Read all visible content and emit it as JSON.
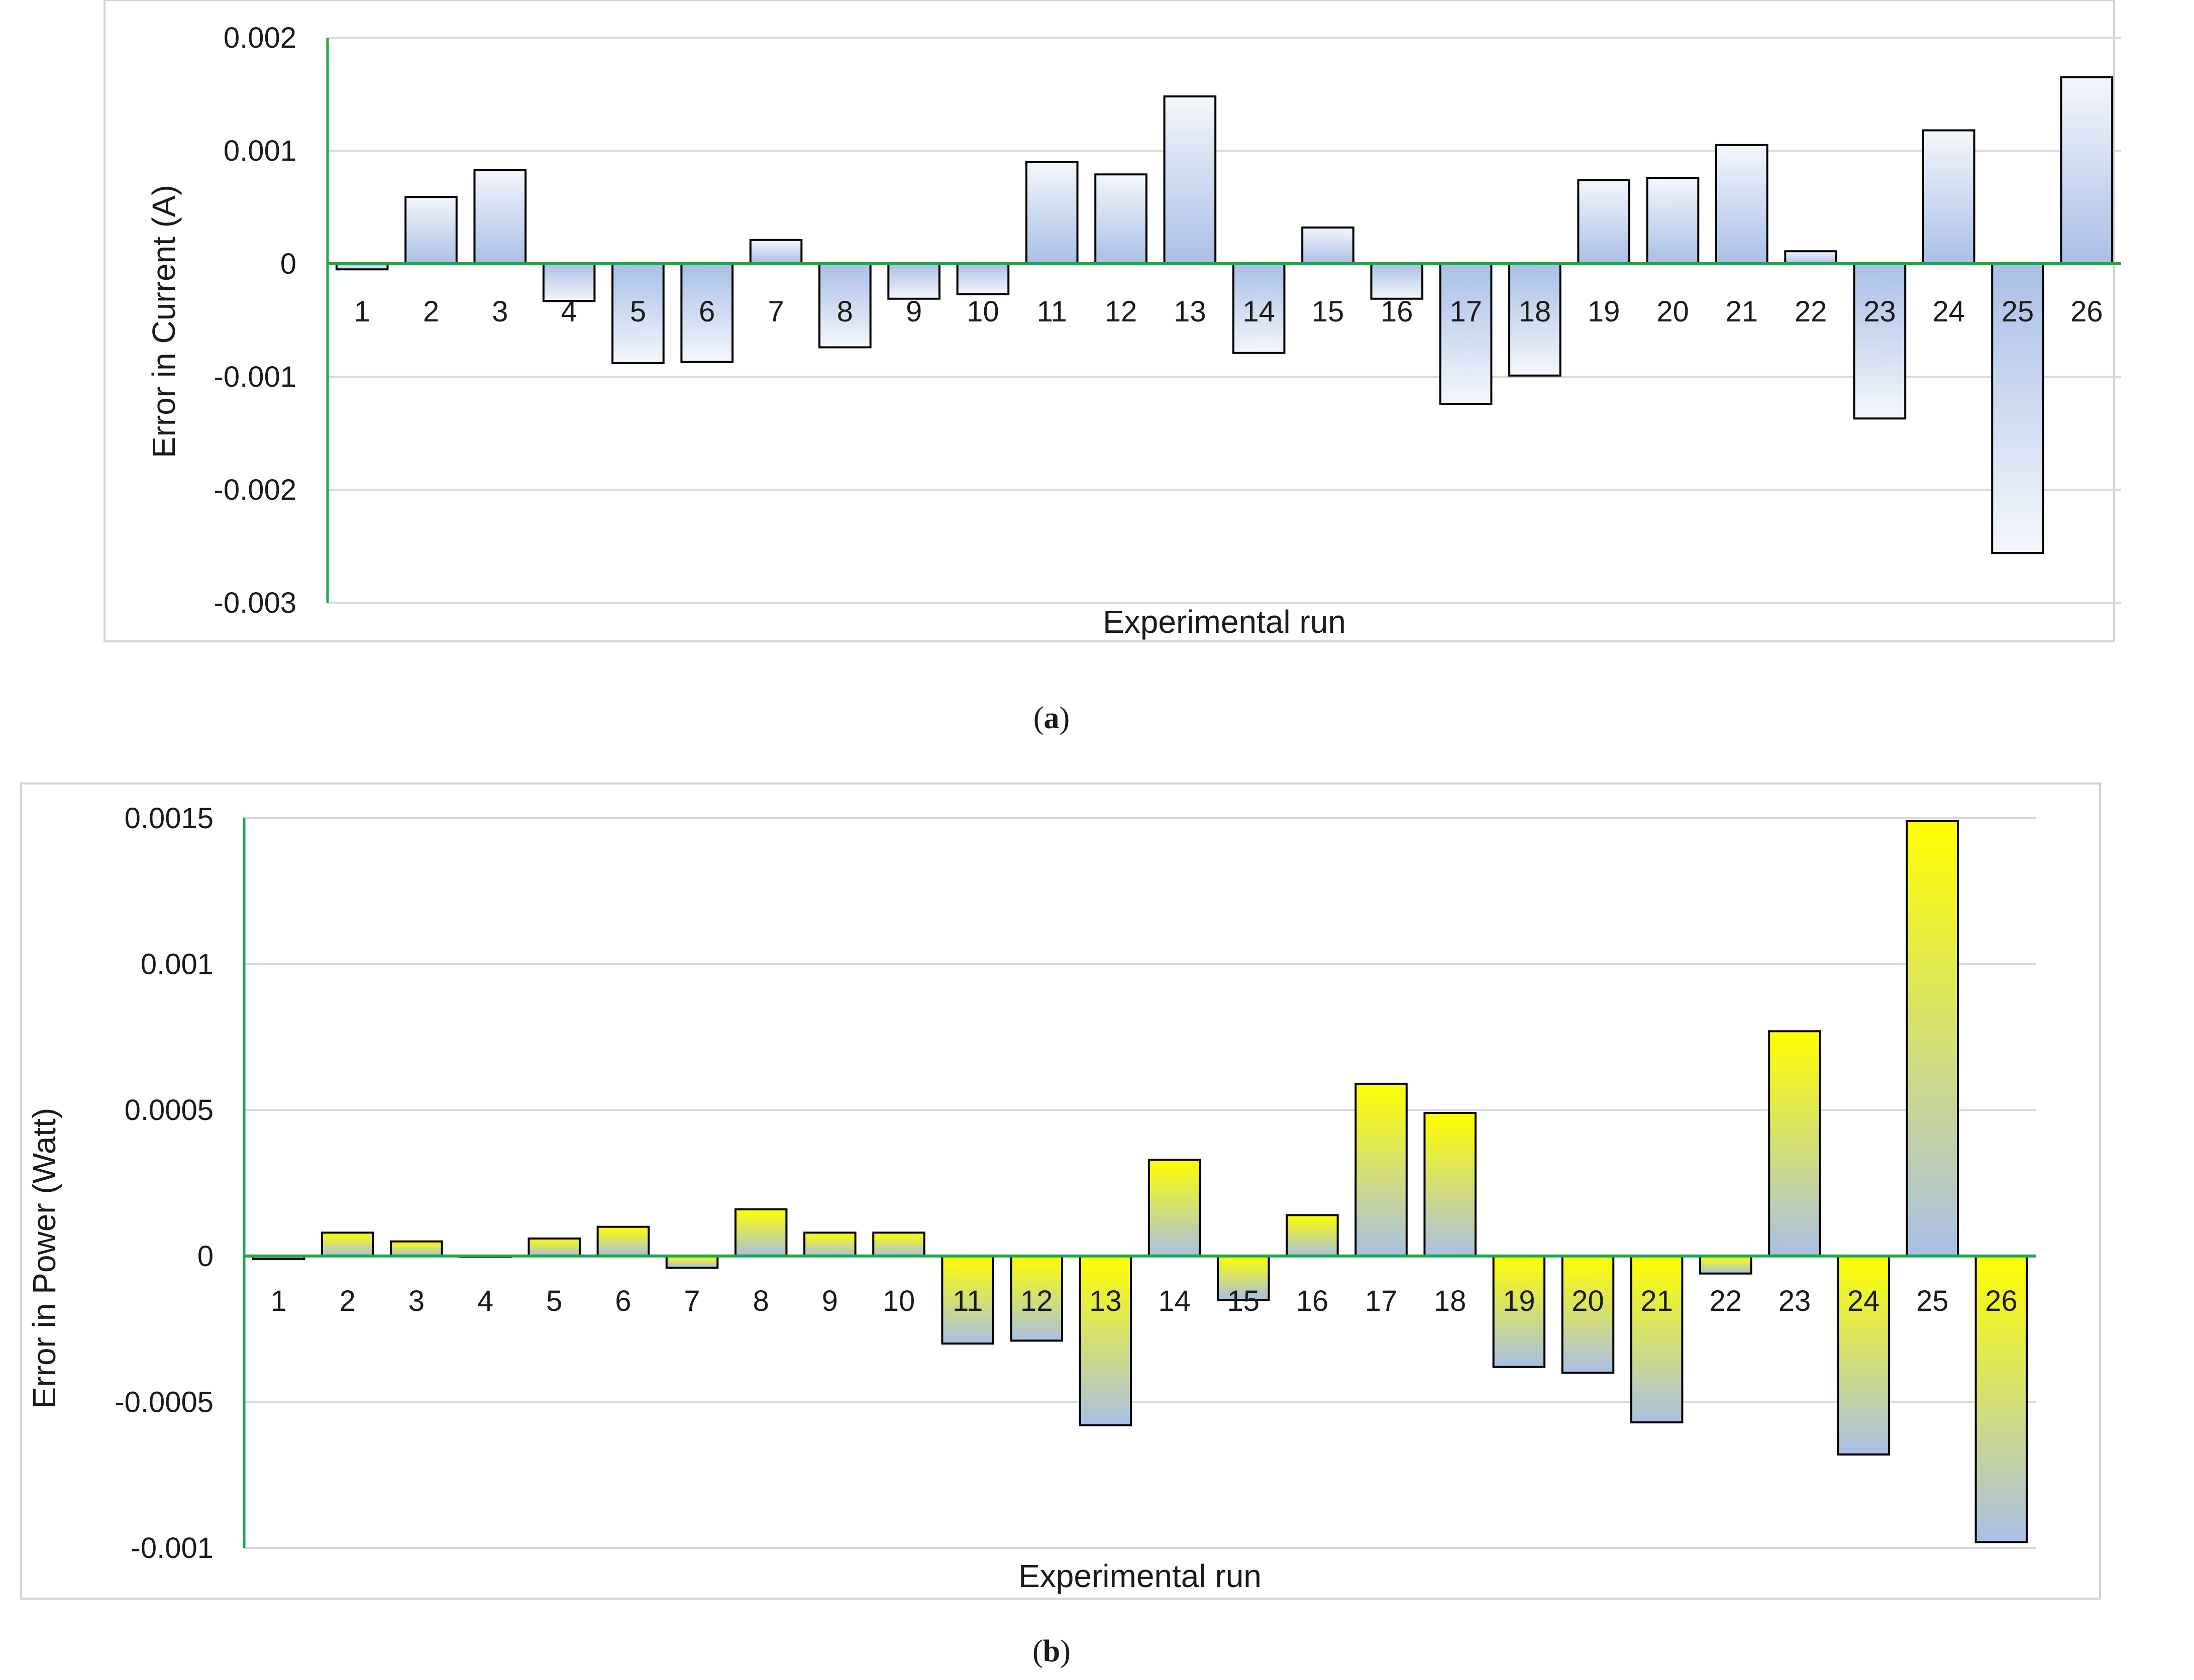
{
  "colors": {
    "axis_zero_line": "#1fa64a",
    "grid": "#d9d9d9",
    "frame": "#d4d4d4",
    "bar_outline": "#000000",
    "blue_fill": "#a9bfe6",
    "white_fill": "#f4f7fc",
    "yellow_fill": "#ffff00"
  },
  "panels": [
    {
      "caption_letter": "a",
      "caption_open": "(",
      "caption_close": ")",
      "chart_data": {
        "type": "bar",
        "xlabel": "Experimental run",
        "ylabel": "Error in Current (A)",
        "ylim": [
          -0.003,
          0.002
        ],
        "yticks": [
          0.002,
          0.001,
          0,
          -0.001,
          -0.002,
          -0.003
        ],
        "ytick_labels": [
          "0.002",
          "0.001",
          "0",
          "-0.001",
          "-0.002",
          "-0.003"
        ],
        "grid": true,
        "fill_style": "white-to-blue gradient",
        "categories": [
          "1",
          "2",
          "3",
          "4",
          "5",
          "6",
          "7",
          "8",
          "9",
          "10",
          "11",
          "12",
          "13",
          "14",
          "15",
          "16",
          "17",
          "18",
          "19",
          "20",
          "21",
          "22",
          "23",
          "24",
          "25",
          "26"
        ],
        "values": [
          -5e-05,
          0.00059,
          0.00083,
          -0.00033,
          -0.00088,
          -0.00087,
          0.00021,
          -0.00074,
          -0.00031,
          -0.00027,
          0.0009,
          0.00079,
          0.00148,
          -0.00079,
          0.00032,
          -0.00031,
          -0.00124,
          -0.00099,
          0.00074,
          0.00076,
          0.00105,
          0.00011,
          -0.00137,
          0.00118,
          -0.00256,
          0.00165
        ]
      }
    },
    {
      "caption_letter": "b",
      "caption_open": "(",
      "caption_close": ")",
      "chart_data": {
        "type": "bar",
        "xlabel": "Experimental run",
        "ylabel": "Error in Power (Watt)",
        "ylim": [
          -0.001,
          0.0015
        ],
        "yticks": [
          0.0015,
          0.001,
          0.0005,
          0,
          -0.0005,
          -0.001
        ],
        "ytick_labels": [
          "0.0015",
          "0.001",
          "0.0005",
          "0",
          "-0.0005",
          "-0.001"
        ],
        "grid": true,
        "fill_style": "blue-to-yellow gradient",
        "categories": [
          "1",
          "2",
          "3",
          "4",
          "5",
          "6",
          "7",
          "8",
          "9",
          "10",
          "11",
          "12",
          "13",
          "14",
          "15",
          "16",
          "17",
          "18",
          "19",
          "20",
          "21",
          "22",
          "23",
          "24",
          "25",
          "26"
        ],
        "values": [
          -1e-05,
          8e-05,
          5e-05,
          0.0,
          6e-05,
          0.0001,
          -4e-05,
          0.00016,
          8e-05,
          8e-05,
          -0.0003,
          -0.00029,
          -0.00058,
          0.00033,
          -0.00015,
          0.00014,
          0.00059,
          0.00049,
          -0.00038,
          -0.0004,
          -0.00057,
          -6e-05,
          0.00077,
          -0.00068,
          0.00149,
          -0.00098
        ]
      }
    }
  ]
}
